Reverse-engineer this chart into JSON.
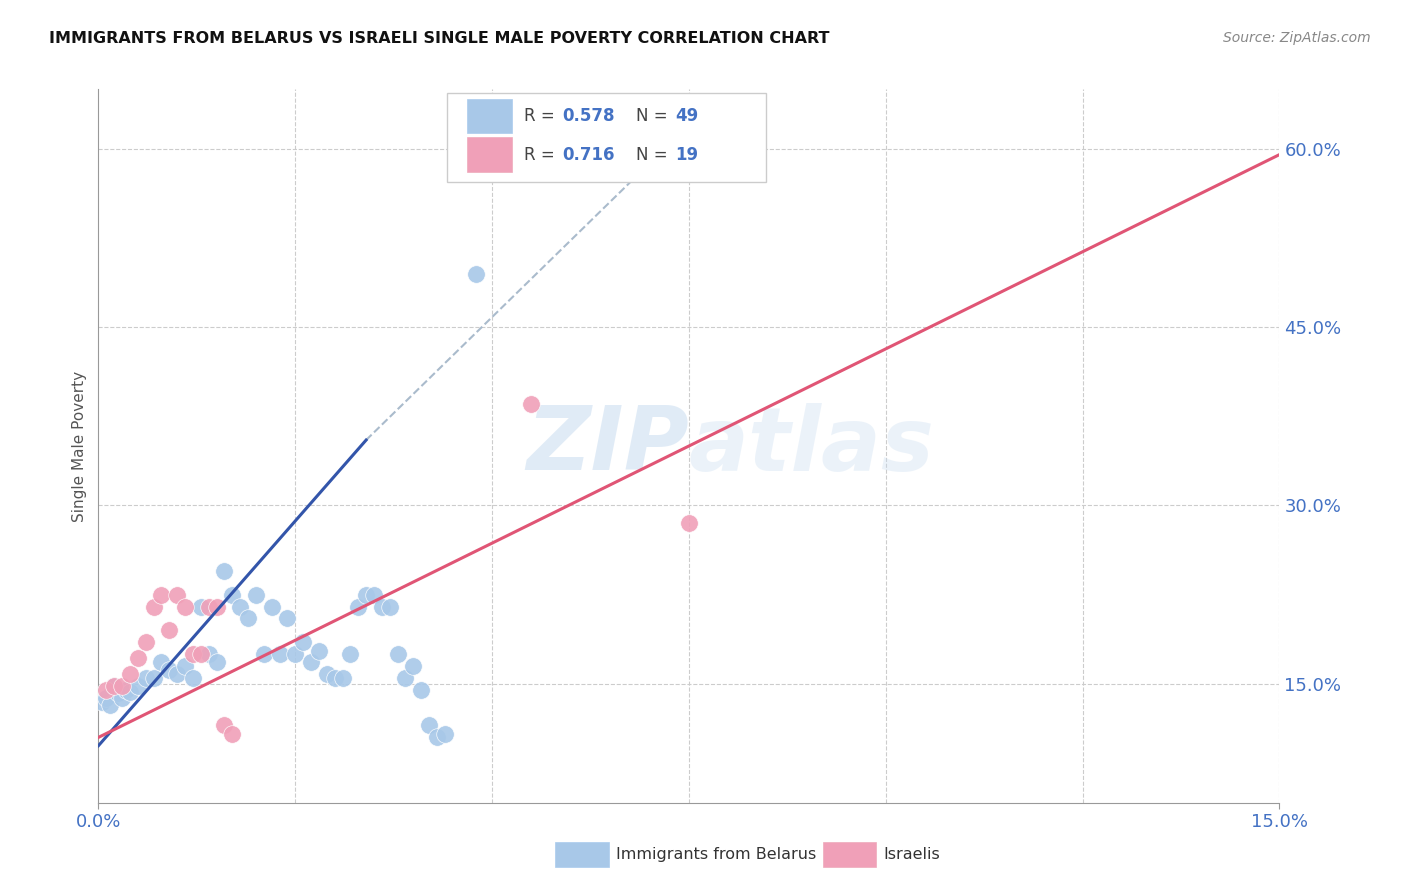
{
  "title": "IMMIGRANTS FROM BELARUS VS ISRAELI SINGLE MALE POVERTY CORRELATION CHART",
  "source": "Source: ZipAtlas.com",
  "ylabel": "Single Male Poverty",
  "legend_labels": [
    "Immigrants from Belarus",
    "Israelis"
  ],
  "blue_color": "#A8C8E8",
  "pink_color": "#F0A0B8",
  "blue_line_color": "#3355AA",
  "pink_line_color": "#E05575",
  "dash_color": "#AABBCC",
  "watermark_color": "#C8DCF0",
  "xlim": [
    0.0,
    0.15
  ],
  "ylim": [
    0.05,
    0.65
  ],
  "ytick_vals": [
    0.15,
    0.3,
    0.45,
    0.6
  ],
  "ytick_labels": [
    "15.0%",
    "30.0%",
    "45.0%",
    "60.0%"
  ],
  "xtick_vals": [
    0.0,
    0.025,
    0.05,
    0.075,
    0.1,
    0.125,
    0.15
  ],
  "blue_scatter": [
    [
      0.0005,
      0.135
    ],
    [
      0.001,
      0.138
    ],
    [
      0.0015,
      0.132
    ],
    [
      0.002,
      0.148
    ],
    [
      0.0025,
      0.142
    ],
    [
      0.003,
      0.138
    ],
    [
      0.0035,
      0.145
    ],
    [
      0.004,
      0.143
    ],
    [
      0.005,
      0.148
    ],
    [
      0.006,
      0.155
    ],
    [
      0.007,
      0.155
    ],
    [
      0.008,
      0.168
    ],
    [
      0.009,
      0.162
    ],
    [
      0.01,
      0.158
    ],
    [
      0.011,
      0.165
    ],
    [
      0.012,
      0.155
    ],
    [
      0.013,
      0.215
    ],
    [
      0.014,
      0.175
    ],
    [
      0.015,
      0.168
    ],
    [
      0.016,
      0.245
    ],
    [
      0.017,
      0.225
    ],
    [
      0.018,
      0.215
    ],
    [
      0.019,
      0.205
    ],
    [
      0.02,
      0.225
    ],
    [
      0.021,
      0.175
    ],
    [
      0.022,
      0.215
    ],
    [
      0.023,
      0.175
    ],
    [
      0.024,
      0.205
    ],
    [
      0.025,
      0.175
    ],
    [
      0.026,
      0.185
    ],
    [
      0.027,
      0.168
    ],
    [
      0.028,
      0.178
    ],
    [
      0.029,
      0.158
    ],
    [
      0.03,
      0.155
    ],
    [
      0.031,
      0.155
    ],
    [
      0.032,
      0.175
    ],
    [
      0.033,
      0.215
    ],
    [
      0.034,
      0.225
    ],
    [
      0.035,
      0.225
    ],
    [
      0.036,
      0.215
    ],
    [
      0.037,
      0.215
    ],
    [
      0.038,
      0.175
    ],
    [
      0.039,
      0.155
    ],
    [
      0.04,
      0.165
    ],
    [
      0.041,
      0.145
    ],
    [
      0.042,
      0.115
    ],
    [
      0.043,
      0.105
    ],
    [
      0.044,
      0.108
    ],
    [
      0.048,
      0.495
    ]
  ],
  "pink_scatter": [
    [
      0.001,
      0.145
    ],
    [
      0.002,
      0.148
    ],
    [
      0.003,
      0.148
    ],
    [
      0.004,
      0.158
    ],
    [
      0.005,
      0.172
    ],
    [
      0.006,
      0.185
    ],
    [
      0.007,
      0.215
    ],
    [
      0.008,
      0.225
    ],
    [
      0.009,
      0.195
    ],
    [
      0.01,
      0.225
    ],
    [
      0.011,
      0.215
    ],
    [
      0.012,
      0.175
    ],
    [
      0.013,
      0.175
    ],
    [
      0.014,
      0.215
    ],
    [
      0.015,
      0.215
    ],
    [
      0.016,
      0.115
    ],
    [
      0.017,
      0.108
    ],
    [
      0.055,
      0.385
    ],
    [
      0.075,
      0.285
    ]
  ],
  "blue_line_x": [
    0.0,
    0.034
  ],
  "blue_line_y": [
    0.098,
    0.355
  ],
  "dash_line_x": [
    0.034,
    0.075
  ],
  "dash_line_y": [
    0.355,
    0.62
  ],
  "pink_line_x": [
    0.0,
    0.15
  ],
  "pink_line_y": [
    0.105,
    0.595
  ],
  "background_color": "#ffffff",
  "grid_color": "#cccccc",
  "tick_color": "#4472C4",
  "label_color": "#555555",
  "title_color": "#111111"
}
